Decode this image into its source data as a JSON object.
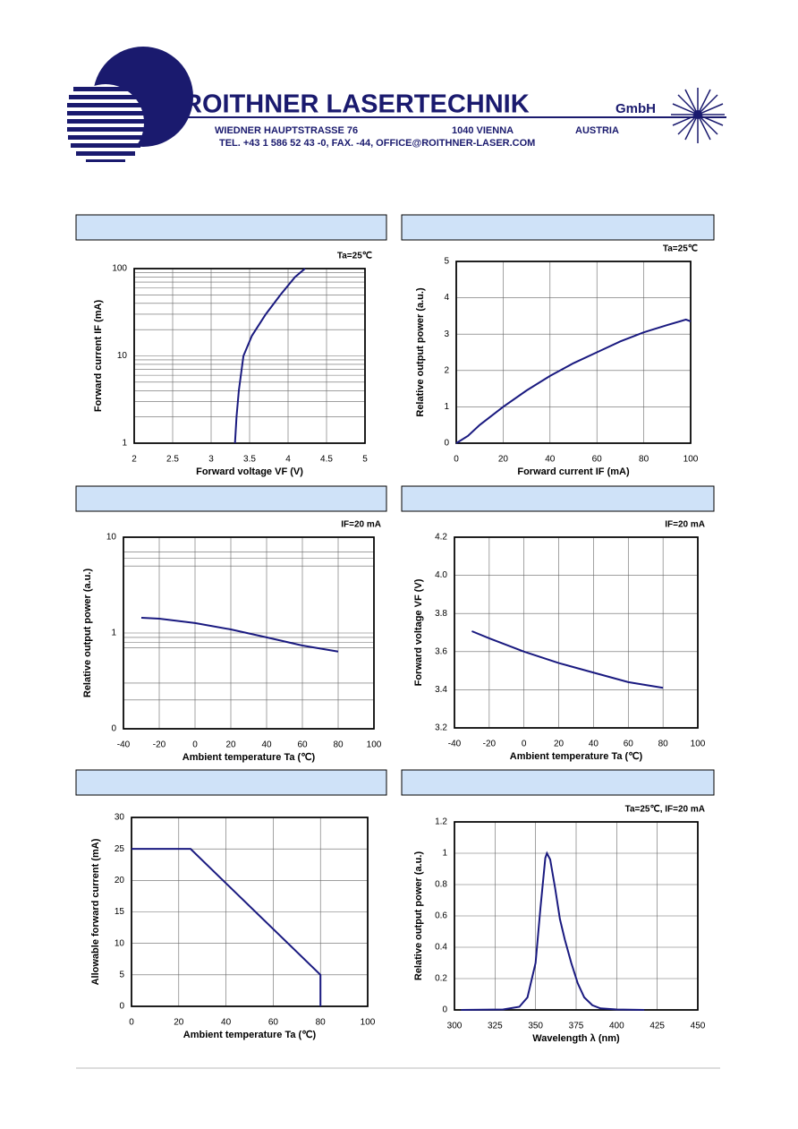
{
  "header": {
    "company": "ROITHNER LASERTECHNIK",
    "suffix": "GmbH",
    "street": "WIEDNER HAUPTSTRASSE 76",
    "city": "1040 VIENNA",
    "country": "AUSTRIA",
    "contact": "TEL. +43 1 586 52 43 -0, FAX. -44, OFFICE@ROITHNER-LASER.COM"
  },
  "chart_data": [
    {
      "type": "line",
      "annotation": "Ta=25℃",
      "x_label": "Forward voltage VF (V)",
      "y_label": "Forward current IF (mA)",
      "color": "#1a1a80",
      "grid": true,
      "ylog": true,
      "x": [
        3.31,
        3.33,
        3.36,
        3.42,
        3.53,
        3.71,
        3.9,
        4.09,
        4.22
      ],
      "values": [
        1,
        2,
        4,
        10,
        17,
        30,
        50,
        80,
        100
      ],
      "xlim": [
        2,
        5
      ],
      "xticks": [
        2,
        2.5,
        3,
        3.5,
        4,
        4.5,
        5
      ],
      "ylim": [
        1,
        100
      ],
      "yticks": [
        1,
        10,
        100
      ],
      "yminor": [
        2,
        3,
        4,
        5,
        6,
        7,
        8,
        9,
        20,
        30,
        40,
        50,
        60,
        70,
        80,
        90
      ]
    },
    {
      "type": "line",
      "annotation": "Ta=25℃",
      "x_label": "Forward current IF (mA)",
      "y_label": "Relative output power (a.u.)",
      "color": "#1a1a80",
      "grid": true,
      "ylog": false,
      "x": [
        0,
        5,
        10,
        20,
        30,
        40,
        50,
        60,
        70,
        80,
        90,
        98,
        100
      ],
      "values": [
        0,
        0.2,
        0.5,
        1.0,
        1.45,
        1.85,
        2.2,
        2.5,
        2.8,
        3.05,
        3.25,
        3.4,
        3.35
      ],
      "xlim": [
        0,
        100
      ],
      "xticks": [
        0,
        20,
        40,
        60,
        80,
        100
      ],
      "ylim": [
        0,
        5
      ],
      "yticks": [
        0,
        1,
        2,
        3,
        4,
        5
      ]
    },
    {
      "type": "line",
      "annotation": "IF=20 mA",
      "x_label": "Ambient temperature Ta (℃)",
      "y_label": "Relative output power (a.u.)",
      "color": "#1a1a80",
      "grid": true,
      "ylog": true,
      "x": [
        -30,
        -20,
        0,
        20,
        40,
        60,
        80
      ],
      "values": [
        1.44,
        1.41,
        1.27,
        1.09,
        0.9,
        0.74,
        0.64
      ],
      "xlim": [
        -40,
        100
      ],
      "xticks": [
        -40,
        -20,
        0,
        20,
        40,
        60,
        80,
        100
      ],
      "ylim": [
        0.1,
        10
      ],
      "yticks": [
        {
          "value": 0.1,
          "label": "0"
        },
        1,
        10
      ],
      "yminor": [
        0.2,
        0.3,
        0.7,
        0.8,
        0.9,
        5,
        6,
        7
      ]
    },
    {
      "type": "line",
      "annotation": "IF=20 mA",
      "x_label": "Ambient temperature Ta (℃)",
      "y_label": "Forward voltage VF (V)",
      "color": "#1a1a80",
      "grid": true,
      "ylog": false,
      "x": [
        -30,
        -20,
        0,
        20,
        40,
        60,
        80
      ],
      "values": [
        3.707,
        3.67,
        3.6,
        3.54,
        3.49,
        3.44,
        3.41
      ],
      "xlim": [
        -40,
        100
      ],
      "xticks": [
        -40,
        -20,
        0,
        20,
        40,
        60,
        80,
        100
      ],
      "ylim": [
        3.2,
        4.2
      ],
      "yticks": [
        3.2,
        3.4,
        3.6,
        3.8,
        {
          "value": 4,
          "label": "4.0"
        },
        4.2
      ]
    },
    {
      "type": "line",
      "x_label": "Ambient temperature Ta (℃)",
      "y_label": "Allowable forward current (mA)",
      "color": "#1a1a80",
      "grid": true,
      "ylog": false,
      "x": [
        0,
        25,
        80,
        80
      ],
      "values": [
        25,
        25,
        5,
        0
      ],
      "xlim": [
        0,
        100
      ],
      "xticks": [
        0,
        20,
        40,
        60,
        80,
        100
      ],
      "ylim": [
        0,
        30
      ],
      "yticks": [
        0,
        5,
        10,
        15,
        20,
        25,
        30
      ]
    },
    {
      "type": "line",
      "annotation": "Ta=25℃, IF=20 mA",
      "x_label": "Wavelength λ (nm)",
      "y_label": "Relative output power (a.u.)",
      "color": "#1a1a80",
      "grid": true,
      "ylog": false,
      "x": [
        304,
        330,
        340,
        345,
        350,
        353,
        356,
        357,
        359,
        362,
        365,
        368,
        372,
        376,
        380,
        385,
        390,
        400,
        417
      ],
      "values": [
        0,
        0.003,
        0.02,
        0.08,
        0.3,
        0.65,
        0.97,
        1.0,
        0.96,
        0.78,
        0.58,
        0.45,
        0.3,
        0.17,
        0.08,
        0.03,
        0.01,
        0.003,
        0
      ],
      "xlim": [
        300,
        450
      ],
      "xticks": [
        300,
        325,
        350,
        375,
        400,
        425,
        450
      ],
      "ylim": [
        0,
        1.2
      ],
      "yticks": [
        0,
        0.2,
        0.4,
        0.6,
        0.8,
        1,
        1.2
      ]
    }
  ]
}
